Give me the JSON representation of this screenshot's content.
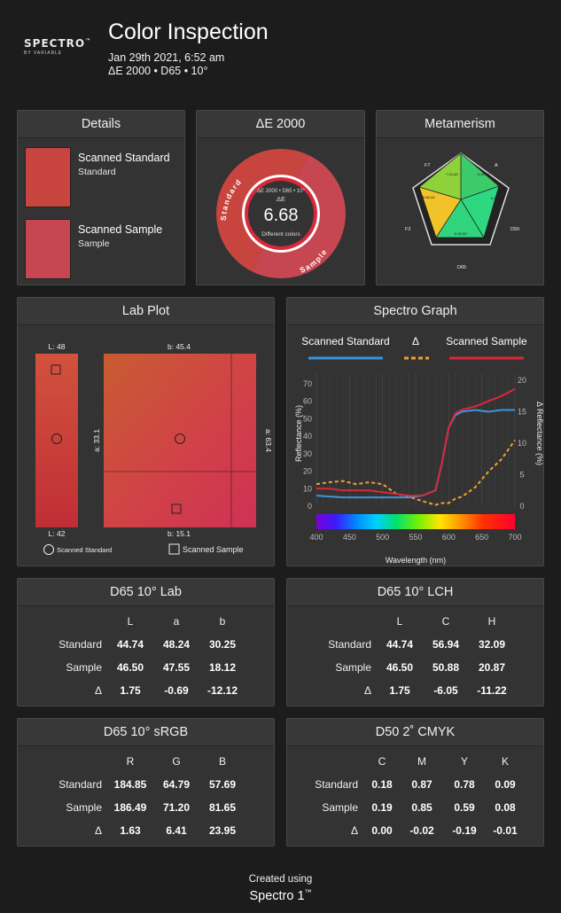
{
  "brand": {
    "logo": "SPECTRO",
    "tagline": "BY VARIABLE"
  },
  "header": {
    "title": "Color Inspection",
    "date": "Jan 29th 2021, 6:52 am",
    "meta": "ΔE 2000 • D65 • 10°"
  },
  "colors": {
    "standard": "#c8453f",
    "sample": "#c64751",
    "panel": "#333333",
    "blue": "#3a96dd",
    "red": "#d9283c",
    "orange": "#f0a231"
  },
  "details": {
    "title": "Details",
    "standard_name": "Scanned Standard",
    "standard_sub": "Standard",
    "sample_name": "Scanned Sample",
    "sample_sub": "Sample"
  },
  "delta": {
    "title": "ΔE 2000",
    "inner_label": "ΔE 2000 • D65 • 10°",
    "de_label": "ΔE",
    "value": "6.68",
    "verdict": "Different colors",
    "arc_left": "Standard",
    "arc_right": "Sample"
  },
  "metamerism": {
    "title": "Metamerism",
    "axes": [
      "A",
      "D50",
      "D65",
      "F2",
      "F7"
    ],
    "values": [
      "6.45 ΔE",
      "6.59 ΔE",
      "6.68 ΔE",
      "5.88 ΔE",
      "7.04 ΔE"
    ]
  },
  "lab_plot": {
    "title": "Lab Plot",
    "l_top": "L: 48",
    "l_bottom": "L: 42",
    "b_top": "b: 45.4",
    "b_bottom": "b: 15.1",
    "a_left": "a: 33.1",
    "a_right": "a: 63.4",
    "legend_standard": "Scanned Standard",
    "legend_sample": "Scanned Sample"
  },
  "spectro": {
    "title": "Spectro Graph",
    "legend": [
      "Scanned Standard",
      "Δ",
      "Scanned Sample"
    ],
    "xlabel": "Wavelength (nm)",
    "ylabel_left": "Reflectance (%)",
    "ylabel_right": "Δ Reflectance (%)",
    "x_ticks": [
      "400",
      "450",
      "500",
      "550",
      "600",
      "650",
      "700"
    ],
    "y_ticks_left": [
      "0",
      "10",
      "20",
      "30",
      "40",
      "50",
      "60",
      "70"
    ],
    "y_ticks_right": [
      "0",
      "5",
      "10",
      "15",
      "20"
    ]
  },
  "chart_data": {
    "type": "line",
    "xlabel": "Wavelength (nm)",
    "ylabel": "Reflectance (%)",
    "xlim": [
      400,
      700
    ],
    "ylim": [
      0,
      75
    ],
    "y2lim": [
      0,
      22
    ],
    "x": [
      400,
      420,
      440,
      460,
      480,
      500,
      520,
      540,
      560,
      580,
      590,
      600,
      610,
      620,
      640,
      660,
      680,
      700
    ],
    "series": [
      {
        "name": "Scanned Standard",
        "axis": "left",
        "values": [
          6,
          5.5,
          5,
          5,
          5,
          5,
          5,
          5,
          6,
          9,
          25,
          45,
          52,
          54,
          55,
          54,
          55,
          55
        ]
      },
      {
        "name": "Scanned Sample",
        "axis": "left",
        "values": [
          10,
          10,
          9,
          9,
          9,
          8,
          7,
          6,
          6,
          9,
          25,
          45,
          53,
          55,
          57,
          60,
          63,
          67
        ]
      },
      {
        "name": "Δ",
        "axis": "right",
        "values": [
          3.5,
          3.8,
          4,
          3.5,
          3.8,
          3.5,
          2,
          1.5,
          0.8,
          0.2,
          0.5,
          0.5,
          1.2,
          1.5,
          3,
          5.5,
          7.5,
          10.5
        ]
      }
    ]
  },
  "lab_table": {
    "title": "D65 10° Lab",
    "headers": [
      "L",
      "a",
      "b"
    ],
    "rows": [
      {
        "label": "Standard",
        "values": [
          "44.74",
          "48.24",
          "30.25"
        ]
      },
      {
        "label": "Sample",
        "values": [
          "46.50",
          "47.55",
          "18.12"
        ]
      },
      {
        "label": "Δ",
        "values": [
          "1.75",
          "-0.69",
          "-12.12"
        ]
      }
    ]
  },
  "lch_table": {
    "title": "D65 10° LCH",
    "headers": [
      "L",
      "C",
      "H"
    ],
    "rows": [
      {
        "label": "Standard",
        "values": [
          "44.74",
          "56.94",
          "32.09"
        ]
      },
      {
        "label": "Sample",
        "values": [
          "46.50",
          "50.88",
          "20.87"
        ]
      },
      {
        "label": "Δ",
        "values": [
          "1.75",
          "-6.05",
          "-11.22"
        ]
      }
    ]
  },
  "srgb_table": {
    "title": "D65 10° sRGB",
    "headers": [
      "R",
      "G",
      "B"
    ],
    "rows": [
      {
        "label": "Standard",
        "values": [
          "184.85",
          "64.79",
          "57.69"
        ]
      },
      {
        "label": "Sample",
        "values": [
          "186.49",
          "71.20",
          "81.65"
        ]
      },
      {
        "label": "Δ",
        "values": [
          "1.63",
          "6.41",
          "23.95"
        ]
      }
    ]
  },
  "cmyk_table": {
    "title": "D50 2˚ CMYK",
    "headers": [
      "C",
      "M",
      "Y",
      "K"
    ],
    "rows": [
      {
        "label": "Standard",
        "values": [
          "0.18",
          "0.87",
          "0.78",
          "0.09"
        ]
      },
      {
        "label": "Sample",
        "values": [
          "0.19",
          "0.85",
          "0.59",
          "0.08"
        ]
      },
      {
        "label": "Δ",
        "values": [
          "0.00",
          "-0.02",
          "-0.19",
          "-0.01"
        ]
      }
    ]
  },
  "footer": {
    "created": "Created using",
    "product": "Spectro 1"
  }
}
